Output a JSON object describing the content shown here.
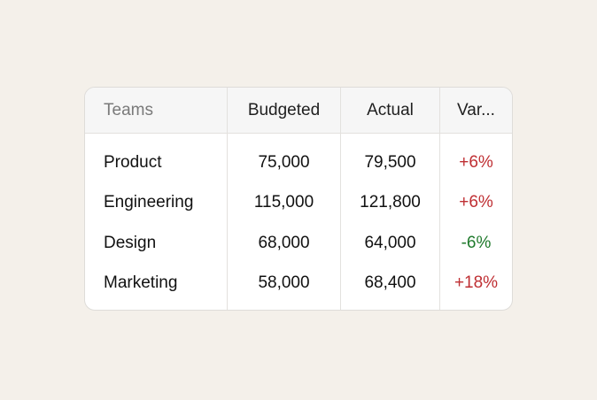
{
  "table": {
    "headers": {
      "teams": "Teams",
      "budgeted": "Budgeted",
      "actual": "Actual",
      "variance": "Var..."
    },
    "rows": [
      {
        "team": "Product",
        "budgeted": "75,000",
        "actual": "79,500",
        "variance": "+6%",
        "variance_trend": "positive"
      },
      {
        "team": "Engineering",
        "budgeted": "115,000",
        "actual": "121,800",
        "variance": "+6%",
        "variance_trend": "positive"
      },
      {
        "team": "Design",
        "budgeted": "68,000",
        "actual": "64,000",
        "variance": "-6%",
        "variance_trend": "negative"
      },
      {
        "team": "Marketing",
        "budgeted": "58,000",
        "actual": "68,400",
        "variance": "+18%",
        "variance_trend": "positive"
      }
    ]
  },
  "colors": {
    "background": "#f4f0ea",
    "card": "#ffffff",
    "header_bg": "#f6f6f6",
    "positive_variance": "#bf2f33",
    "negative_variance": "#1f7a2c"
  }
}
